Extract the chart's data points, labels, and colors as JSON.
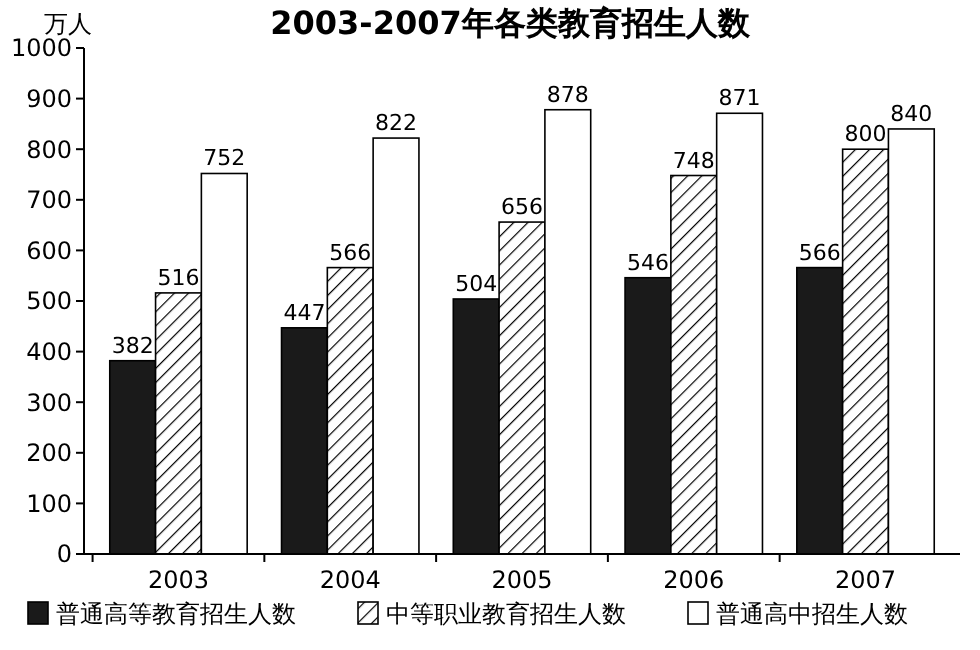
{
  "chart_data": {
    "type": "bar",
    "title": "2003-2007年各类教育招生人数",
    "ylabel": "万人",
    "categories": [
      "2003",
      "2004",
      "2005",
      "2006",
      "2007"
    ],
    "series": [
      {
        "name": "普通高等教育招生人数",
        "color": "#1a1a1a",
        "values": [
          382,
          447,
          504,
          546,
          566
        ]
      },
      {
        "name": "中等职业教育招生人数",
        "color": "#000000",
        "values": [
          516,
          566,
          656,
          748,
          800
        ]
      },
      {
        "name": "普通高中招生人数",
        "color": "#ffffff",
        "values": [
          752,
          822,
          878,
          871,
          840
        ]
      }
    ],
    "ylim": [
      0,
      1000
    ],
    "yticks": [
      0,
      100,
      200,
      300,
      400,
      500,
      600,
      700,
      800,
      900,
      1000
    ],
    "data_labels": true,
    "legend": "bottom",
    "grid": false
  }
}
